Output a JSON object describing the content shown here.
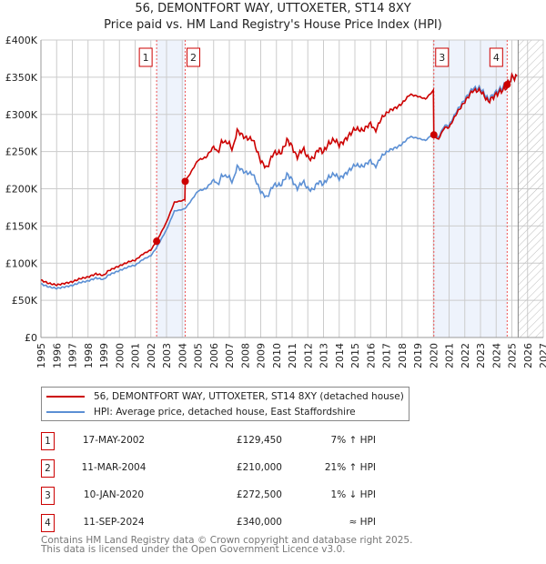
{
  "title": "56, DEMONTFORT WAY, UTTOXETER, ST14 8XY",
  "subtitle": "Price paid vs. HM Land Registry's House Price Index (HPI)",
  "chart_data": {
    "type": "line",
    "xlim": [
      1995,
      2027
    ],
    "ylim": [
      0,
      400000
    ],
    "y_ticks": [
      {
        "v": 0,
        "label": "£0"
      },
      {
        "v": 50000,
        "label": "£50K"
      },
      {
        "v": 100000,
        "label": "£100K"
      },
      {
        "v": 150000,
        "label": "£150K"
      },
      {
        "v": 200000,
        "label": "£200K"
      },
      {
        "v": 250000,
        "label": "£250K"
      },
      {
        "v": 300000,
        "label": "£300K"
      },
      {
        "v": 350000,
        "label": "£350K"
      },
      {
        "v": 400000,
        "label": "£400K"
      }
    ],
    "x_ticks": [
      "1995",
      "1996",
      "1997",
      "1998",
      "1999",
      "2000",
      "2001",
      "2002",
      "2003",
      "2004",
      "2005",
      "2006",
      "2007",
      "2008",
      "2009",
      "2010",
      "2011",
      "2012",
      "2013",
      "2014",
      "2015",
      "2016",
      "2017",
      "2018",
      "2019",
      "2020",
      "2021",
      "2022",
      "2023",
      "2024",
      "2025",
      "2026",
      "2027"
    ],
    "forecast_start": 2025.4,
    "colors": {
      "property": "#cc0000",
      "hpi": "#5b8fd4",
      "shade": "#eef3fc"
    },
    "hpi": [
      [
        1995,
        72000
      ],
      [
        1995.5,
        68000
      ],
      [
        1996,
        66000
      ],
      [
        1997,
        70000
      ],
      [
        1997.5,
        74000
      ],
      [
        1998,
        76000
      ],
      [
        1998.5,
        80000
      ],
      [
        1999,
        78000
      ],
      [
        1999.3,
        84000
      ],
      [
        2000,
        90000
      ],
      [
        2000.7,
        96000
      ],
      [
        2001,
        97000
      ],
      [
        2001.5,
        105000
      ],
      [
        2002,
        110000
      ],
      [
        2002.37,
        121000
      ],
      [
        2003,
        145000
      ],
      [
        2003.5,
        170000
      ],
      [
        2004,
        172000
      ],
      [
        2004.19,
        173500
      ],
      [
        2004.5,
        182000
      ],
      [
        2005,
        197000
      ],
      [
        2005.5,
        200000
      ],
      [
        2006,
        212000
      ],
      [
        2006.3,
        205000
      ],
      [
        2006.5,
        218000
      ],
      [
        2007,
        216000
      ],
      [
        2007.2,
        208000
      ],
      [
        2007.5,
        230000
      ],
      [
        2008,
        222000
      ],
      [
        2008.5,
        220000
      ],
      [
        2009,
        196000
      ],
      [
        2009.4,
        188000
      ],
      [
        2009.8,
        205000
      ],
      [
        2010.3,
        205000
      ],
      [
        2010.7,
        220000
      ],
      [
        2011,
        212000
      ],
      [
        2011.3,
        200000
      ],
      [
        2011.7,
        210000
      ],
      [
        2012,
        200000
      ],
      [
        2012.3,
        198000
      ],
      [
        2012.7,
        210000
      ],
      [
        2013,
        206000
      ],
      [
        2013.3,
        215000
      ],
      [
        2013.7,
        220000
      ],
      [
        2014,
        214000
      ],
      [
        2014.3,
        218000
      ],
      [
        2015,
        232000
      ],
      [
        2015.5,
        230000
      ],
      [
        2016,
        238000
      ],
      [
        2016.3,
        229000
      ],
      [
        2016.7,
        244000
      ],
      [
        2017.2,
        252000
      ],
      [
        2017.7,
        256000
      ],
      [
        2018,
        260000
      ],
      [
        2018.5,
        270000
      ],
      [
        2019,
        268000
      ],
      [
        2019.5,
        265000
      ],
      [
        2020.03,
        275000
      ],
      [
        2020.3,
        268000
      ],
      [
        2020.7,
        285000
      ],
      [
        2021,
        285000
      ],
      [
        2021.5,
        305000
      ],
      [
        2022,
        320000
      ],
      [
        2022.5,
        335000
      ],
      [
        2023,
        335000
      ],
      [
        2023.5,
        320000
      ],
      [
        2024,
        330000
      ],
      [
        2024.7,
        340000
      ],
      [
        2025,
        350000
      ],
      [
        2025.4,
        350000
      ]
    ],
    "sales": [
      {
        "n": "1",
        "t": 2002.37,
        "price": 129450
      },
      {
        "n": "2",
        "t": 2004.19,
        "price": 210000
      },
      {
        "n": "3",
        "t": 2020.03,
        "price": 272500
      },
      {
        "n": "4",
        "t": 2024.7,
        "price": 340000
      }
    ]
  },
  "legend": {
    "property": "56, DEMONTFORT WAY, UTTOXETER, ST14 8XY (detached house)",
    "hpi": "HPI: Average price, detached house, East Staffordshire"
  },
  "transactions": [
    {
      "n": "1",
      "date": "17-MAY-2002",
      "price": "£129,450",
      "diff": "7% ↑ HPI"
    },
    {
      "n": "2",
      "date": "11-MAR-2004",
      "price": "£210,000",
      "diff": "21% ↑ HPI"
    },
    {
      "n": "3",
      "date": "10-JAN-2020",
      "price": "£272,500",
      "diff": "1% ↓ HPI"
    },
    {
      "n": "4",
      "date": "11-SEP-2024",
      "price": "£340,000",
      "diff": "≈ HPI"
    }
  ],
  "footer": {
    "line1": "Contains HM Land Registry data © Crown copyright and database right 2025.",
    "line2": "This data is licensed under the Open Government Licence v3.0."
  }
}
